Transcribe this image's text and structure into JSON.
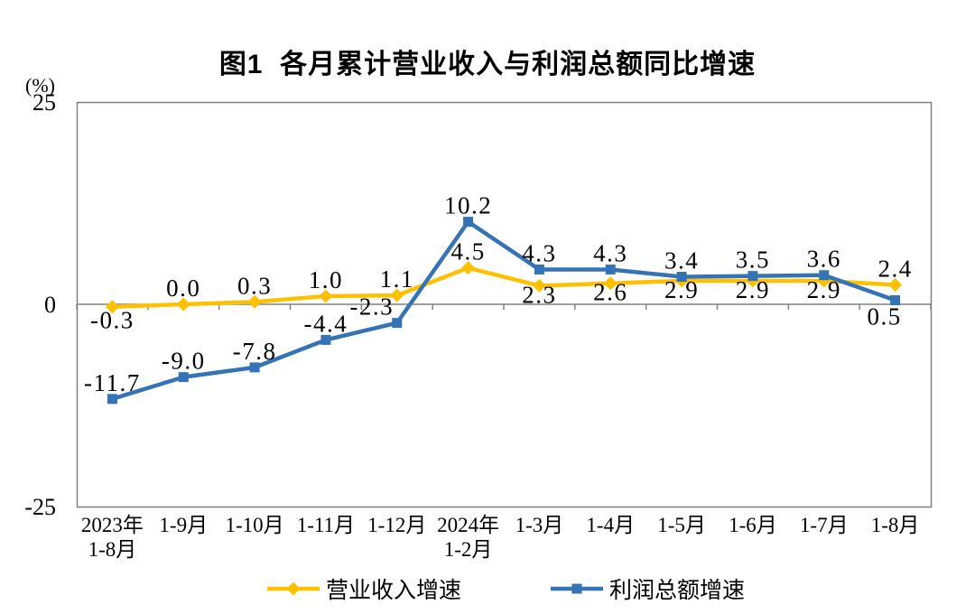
{
  "title": "图1  各月累计营业收入与利润总额同比增速",
  "y_axis": {
    "unit": "(%)",
    "ticks": [
      {
        "label": "25",
        "value": 25
      },
      {
        "label": "0",
        "value": 0
      },
      {
        "label": "-25",
        "value": -25
      }
    ]
  },
  "chart_data": {
    "type": "line",
    "title": "图1 各月累计营业收入与利润总额同比增速",
    "ylabel": "(%)",
    "ylim": [
      -25,
      25
    ],
    "grid": false,
    "legend_position": "bottom",
    "categories": [
      [
        "2023年",
        "1-8月"
      ],
      [
        "1-9月"
      ],
      [
        "1-10月"
      ],
      [
        "1-11月"
      ],
      [
        "1-12月"
      ],
      [
        "2024年",
        "1-2月"
      ],
      [
        "1-3月"
      ],
      [
        "1-4月"
      ],
      [
        "1-5月"
      ],
      [
        "1-6月"
      ],
      [
        "1-7月"
      ],
      [
        "1-8月"
      ]
    ],
    "series": [
      {
        "name": "营业收入增速",
        "color": "#FFC000",
        "marker": "diamond",
        "values": [
          -0.3,
          0.0,
          0.3,
          1.0,
          1.1,
          4.5,
          2.3,
          2.6,
          2.9,
          2.9,
          2.9,
          2.4
        ],
        "labels": [
          "-0.3",
          "0.0",
          "0.3",
          "1.0",
          "1.1",
          "4.5",
          "2.3",
          "2.6",
          "2.9",
          "2.9",
          "2.9",
          "2.4"
        ],
        "label_dy": [
          24,
          -9,
          -9,
          -9,
          -9,
          -9,
          19,
          19,
          19,
          19,
          19,
          -9
        ],
        "label_dx": [
          0,
          0,
          0,
          0,
          0,
          0,
          0,
          0,
          0,
          0,
          0,
          0
        ]
      },
      {
        "name": "利润总额增速",
        "color": "#3473B5",
        "marker": "square",
        "values": [
          -11.7,
          -9.0,
          -7.8,
          -4.4,
          -2.3,
          10.2,
          4.3,
          4.3,
          3.4,
          3.5,
          3.6,
          0.5
        ],
        "labels": [
          "-11.7",
          "-9.0",
          "-7.8",
          "-4.4",
          "-2.3",
          "10.2",
          "4.3",
          "4.3",
          "3.4",
          "3.5",
          "3.6",
          "0.5"
        ],
        "label_dy": [
          -9,
          -9,
          -9,
          -9,
          -9,
          -9,
          -9,
          -9,
          -9,
          -9,
          -9,
          27
        ],
        "label_dx": [
          0,
          0,
          0,
          0,
          -28,
          0,
          0,
          0,
          0,
          0,
          0,
          -12
        ]
      }
    ]
  },
  "legend": {
    "items": [
      {
        "label": "营业收入增速",
        "color": "#FFC000",
        "marker": "diamond"
      },
      {
        "label": "利润总额增速",
        "color": "#3473B5",
        "marker": "square"
      }
    ]
  },
  "colors": {
    "axis": "#808080",
    "text": "#000000"
  }
}
